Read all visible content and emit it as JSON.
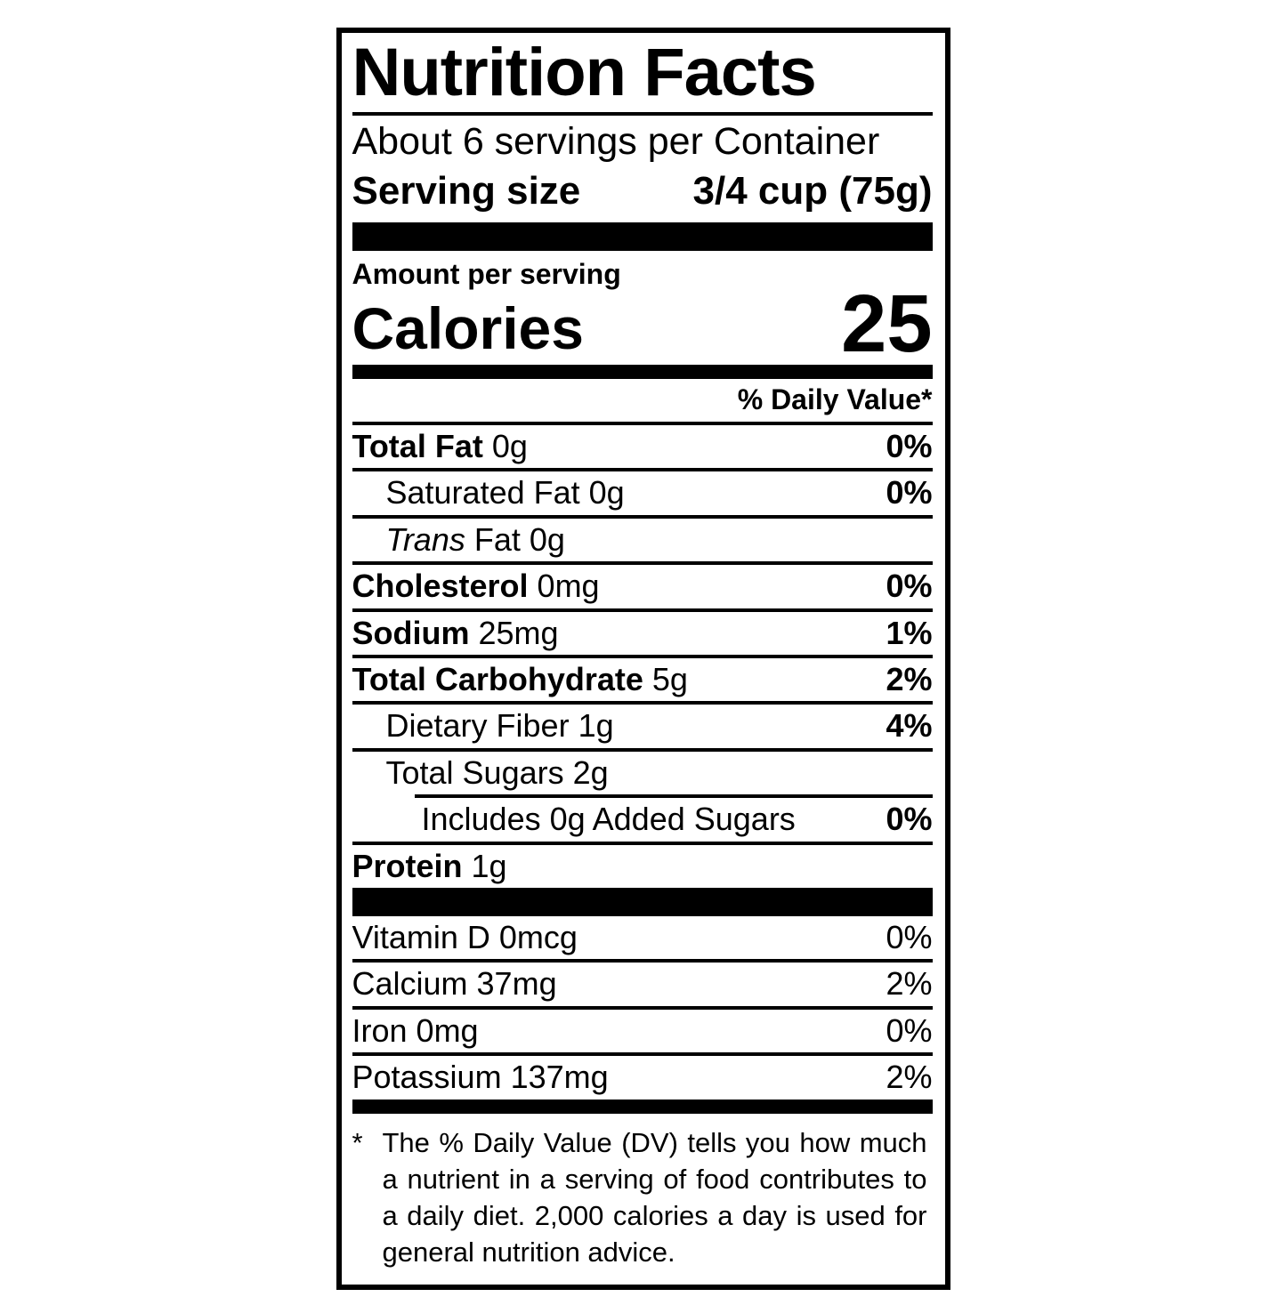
{
  "colors": {
    "ink": "#000000",
    "paper": "#ffffff"
  },
  "label": {
    "title": "Nutrition Facts",
    "servings_per_container": "About 6 servings per Container",
    "serving_size_label": "Serving size",
    "serving_size_value": "3/4 cup (75g)",
    "amount_per_serving": "Amount per serving",
    "calories_label": "Calories",
    "calories_value": "25",
    "daily_value_header": "% Daily Value*",
    "nutrients": [
      {
        "name": "Total Fat",
        "amount": "0g",
        "dv": "0%",
        "name_bold": true,
        "indent": 0
      },
      {
        "name": "Saturated Fat",
        "amount": "0g",
        "dv": "0%",
        "name_bold": false,
        "indent": 1
      },
      {
        "italic_prefix": "Trans",
        "name": "Fat",
        "amount": "0g",
        "name_bold": false,
        "indent": 1
      },
      {
        "name": "Cholesterol",
        "amount": "0mg",
        "dv": "0%",
        "name_bold": true,
        "indent": 0
      },
      {
        "name": "Sodium",
        "amount": "25mg",
        "dv": "1%",
        "name_bold": true,
        "indent": 0
      },
      {
        "name": "Total Carbohydrate",
        "amount": "5g",
        "dv": "2%",
        "name_bold": true,
        "indent": 0
      },
      {
        "name": "Dietary Fiber",
        "amount": "1g",
        "dv": "4%",
        "name_bold": false,
        "indent": 1
      },
      {
        "name": "Total Sugars",
        "amount": "2g",
        "name_bold": false,
        "indent": 1
      },
      {
        "name": "Includes 0g Added Sugars",
        "dv": "0%",
        "name_bold": false,
        "indent": 2,
        "rule_indent": true
      },
      {
        "name": "Protein",
        "amount": "1g",
        "name_bold": true,
        "indent": 0
      }
    ],
    "vitamins": [
      {
        "name": "Vitamin D",
        "amount": "0mcg",
        "dv": "0%"
      },
      {
        "name": "Calcium",
        "amount": "37mg",
        "dv": "2%"
      },
      {
        "name": "Iron",
        "amount": "0mg",
        "dv": "0%"
      },
      {
        "name": "Potassium",
        "amount": "137mg",
        "dv": "2%"
      }
    ],
    "footnote_marker": "*",
    "footnote": "The % Daily Value (DV) tells you how much a nutrient in a serving of food contributes to a daily diet. 2,000 calories a day is used for general nutrition advice."
  }
}
